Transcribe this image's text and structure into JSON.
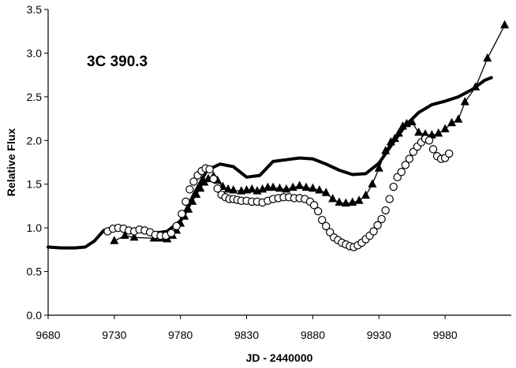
{
  "chart_data": {
    "type": "line",
    "annotation": "3C 390.3",
    "xlabel": "JD - 2440000",
    "ylabel": "Relative Flux",
    "xlim": [
      9680,
      10030
    ],
    "ylim": [
      0,
      3.5
    ],
    "xticks": [
      9680,
      9730,
      9780,
      9830,
      9880,
      9930,
      9980
    ],
    "yticks": [
      "0.0",
      "0.5",
      "1.0",
      "1.5",
      "2.0",
      "2.5",
      "3.0",
      "3.5"
    ],
    "grid": false,
    "legend": "none",
    "series": [
      {
        "style": "thick-line",
        "color": "#000000",
        "points": [
          [
            9680,
            0.78
          ],
          [
            9690,
            0.77
          ],
          [
            9700,
            0.77
          ],
          [
            9708,
            0.78
          ],
          [
            9715,
            0.85
          ],
          [
            9722,
            0.97
          ],
          [
            9730,
            1.01
          ],
          [
            9740,
            0.99
          ],
          [
            9750,
            0.96
          ],
          [
            9760,
            0.94
          ],
          [
            9770,
            0.96
          ],
          [
            9780,
            1.08
          ],
          [
            9790,
            1.38
          ],
          [
            9800,
            1.66
          ],
          [
            9810,
            1.73
          ],
          [
            9820,
            1.7
          ],
          [
            9830,
            1.58
          ],
          [
            9840,
            1.6
          ],
          [
            9850,
            1.76
          ],
          [
            9860,
            1.78
          ],
          [
            9870,
            1.8
          ],
          [
            9880,
            1.79
          ],
          [
            9890,
            1.73
          ],
          [
            9900,
            1.66
          ],
          [
            9910,
            1.61
          ],
          [
            9920,
            1.62
          ],
          [
            9930,
            1.74
          ],
          [
            9940,
            1.96
          ],
          [
            9950,
            2.17
          ],
          [
            9960,
            2.32
          ],
          [
            9970,
            2.41
          ],
          [
            9980,
            2.45
          ],
          [
            9990,
            2.5
          ],
          [
            10000,
            2.58
          ],
          [
            10010,
            2.69
          ],
          [
            10015,
            2.72
          ]
        ]
      },
      {
        "style": "triangles-with-line",
        "color": "#000000",
        "points": [
          [
            9730,
            0.85
          ],
          [
            9738,
            0.91
          ],
          [
            9745,
            0.89
          ],
          [
            9760,
            0.88
          ],
          [
            9765,
            0.88
          ],
          [
            9770,
            0.87
          ],
          [
            9774,
            0.91
          ],
          [
            9777,
            0.97
          ],
          [
            9780,
            1.05
          ],
          [
            9783,
            1.13
          ],
          [
            9786,
            1.21
          ],
          [
            9789,
            1.3
          ],
          [
            9792,
            1.38
          ],
          [
            9795,
            1.45
          ],
          [
            9798,
            1.52
          ],
          [
            9801,
            1.56
          ],
          [
            9805,
            1.59
          ],
          [
            9808,
            1.54
          ],
          [
            9812,
            1.47
          ],
          [
            9816,
            1.44
          ],
          [
            9820,
            1.43
          ],
          [
            9826,
            1.42
          ],
          [
            9830,
            1.43
          ],
          [
            9834,
            1.44
          ],
          [
            9838,
            1.42
          ],
          [
            9842,
            1.44
          ],
          [
            9846,
            1.46
          ],
          [
            9850,
            1.46
          ],
          [
            9855,
            1.45
          ],
          [
            9860,
            1.44
          ],
          [
            9865,
            1.46
          ],
          [
            9870,
            1.48
          ],
          [
            9875,
            1.46
          ],
          [
            9880,
            1.45
          ],
          [
            9885,
            1.43
          ],
          [
            9890,
            1.4
          ],
          [
            9895,
            1.33
          ],
          [
            9900,
            1.29
          ],
          [
            9905,
            1.28
          ],
          [
            9910,
            1.29
          ],
          [
            9915,
            1.31
          ],
          [
            9920,
            1.37
          ],
          [
            9925,
            1.5
          ],
          [
            9930,
            1.68
          ],
          [
            9935,
            1.88
          ],
          [
            9939,
            1.98
          ],
          [
            9942,
            2.02
          ],
          [
            9945,
            2.08
          ],
          [
            9948,
            2.16
          ],
          [
            9951,
            2.19
          ],
          [
            9955,
            2.21
          ],
          [
            9960,
            2.09
          ],
          [
            9965,
            2.07
          ],
          [
            9970,
            2.06
          ],
          [
            9975,
            2.08
          ],
          [
            9980,
            2.13
          ],
          [
            9985,
            2.2
          ],
          [
            9990,
            2.24
          ],
          [
            9995,
            2.44
          ],
          [
            10003,
            2.61
          ],
          [
            10012,
            2.94
          ],
          [
            10025,
            3.32
          ]
        ]
      },
      {
        "style": "open-circles",
        "color": "#000000",
        "points": [
          [
            9725,
            0.96
          ],
          [
            9729,
            0.99
          ],
          [
            9733,
            1.0
          ],
          [
            9737,
            0.99
          ],
          [
            9741,
            0.97
          ],
          [
            9745,
            0.96
          ],
          [
            9749,
            0.98
          ],
          [
            9753,
            0.97
          ],
          [
            9757,
            0.95
          ],
          [
            9761,
            0.92
          ],
          [
            9765,
            0.91
          ],
          [
            9769,
            0.91
          ],
          [
            9773,
            0.94
          ],
          [
            9777,
            1.02
          ],
          [
            9781,
            1.16
          ],
          [
            9784,
            1.3
          ],
          [
            9787,
            1.44
          ],
          [
            9790,
            1.53
          ],
          [
            9793,
            1.6
          ],
          [
            9796,
            1.65
          ],
          [
            9799,
            1.68
          ],
          [
            9802,
            1.67
          ],
          [
            9805,
            1.56
          ],
          [
            9808,
            1.45
          ],
          [
            9811,
            1.38
          ],
          [
            9814,
            1.35
          ],
          [
            9817,
            1.33
          ],
          [
            9820,
            1.33
          ],
          [
            9823,
            1.32
          ],
          [
            9826,
            1.31
          ],
          [
            9830,
            1.31
          ],
          [
            9834,
            1.3
          ],
          [
            9838,
            1.3
          ],
          [
            9842,
            1.29
          ],
          [
            9846,
            1.31
          ],
          [
            9850,
            1.33
          ],
          [
            9854,
            1.34
          ],
          [
            9858,
            1.35
          ],
          [
            9862,
            1.35
          ],
          [
            9866,
            1.34
          ],
          [
            9870,
            1.34
          ],
          [
            9874,
            1.33
          ],
          [
            9878,
            1.3
          ],
          [
            9881,
            1.26
          ],
          [
            9884,
            1.19
          ],
          [
            9887,
            1.09
          ],
          [
            9890,
            1.02
          ],
          [
            9893,
            0.95
          ],
          [
            9896,
            0.89
          ],
          [
            9899,
            0.86
          ],
          [
            9902,
            0.83
          ],
          [
            9905,
            0.81
          ],
          [
            9908,
            0.79
          ],
          [
            9911,
            0.78
          ],
          [
            9914,
            0.8
          ],
          [
            9917,
            0.83
          ],
          [
            9920,
            0.87
          ],
          [
            9923,
            0.91
          ],
          [
            9926,
            0.96
          ],
          [
            9929,
            1.03
          ],
          [
            9932,
            1.1
          ],
          [
            9935,
            1.2
          ],
          [
            9938,
            1.33
          ],
          [
            9941,
            1.47
          ],
          [
            9944,
            1.58
          ],
          [
            9947,
            1.64
          ],
          [
            9950,
            1.72
          ],
          [
            9953,
            1.79
          ],
          [
            9956,
            1.87
          ],
          [
            9959,
            1.93
          ],
          [
            9962,
            1.98
          ],
          [
            9965,
            2.02
          ],
          [
            9968,
            2.0
          ],
          [
            9971,
            1.9
          ],
          [
            9974,
            1.82
          ],
          [
            9977,
            1.79
          ],
          [
            9980,
            1.8
          ],
          [
            9983,
            1.85
          ]
        ]
      }
    ]
  }
}
